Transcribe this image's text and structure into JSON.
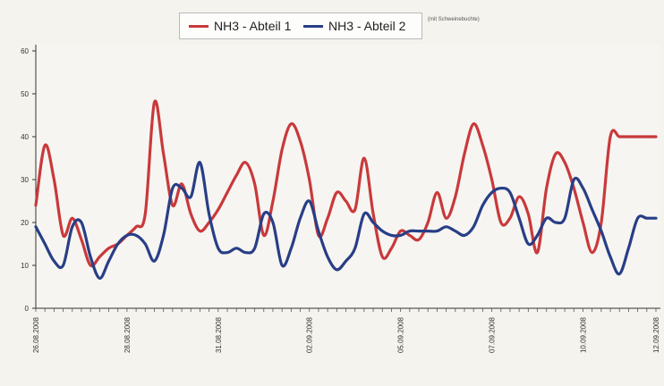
{
  "chart_data": {
    "type": "line",
    "title": "",
    "xlabel": "",
    "ylabel": "",
    "ylim": [
      0,
      60
    ],
    "yticks": [
      0,
      10,
      20,
      30,
      40,
      50,
      60
    ],
    "grid": false,
    "legend_position": "top-center",
    "note": "(mit Schweinebuchte)",
    "x_tick_labels": [
      "26.08.2008",
      "28.08.2008",
      "31.08.2008",
      "02.09.2008",
      "05.09.2008",
      "07.09.2008",
      "10.09.2008",
      "12.09.2008"
    ],
    "x": [
      0,
      1,
      2,
      3,
      4,
      5,
      6,
      7,
      8,
      9,
      10,
      11,
      12,
      13,
      14,
      15,
      16,
      17,
      18,
      19,
      20,
      21,
      22,
      23,
      24,
      25,
      26,
      27,
      28,
      29,
      30,
      31,
      32,
      33,
      34,
      35,
      36,
      37,
      38,
      39,
      40,
      41,
      42,
      43,
      44,
      45,
      46,
      47,
      48,
      49,
      50,
      51,
      52,
      53,
      54,
      55,
      56,
      57,
      58,
      59,
      60,
      61,
      62,
      63,
      64,
      65,
      66,
      67,
      68
    ],
    "x_tick_positions": [
      0,
      10,
      20,
      30,
      40,
      50,
      60,
      68
    ],
    "series": [
      {
        "name": "NH3 - Abteil 1",
        "color": "#c9393b",
        "values": [
          24,
          38,
          30,
          17,
          21,
          16,
          10,
          12,
          14,
          15,
          17,
          19,
          22,
          48,
          36,
          24,
          29,
          22,
          18,
          20,
          23,
          27,
          31,
          34,
          29,
          17,
          25,
          37,
          43,
          39,
          30,
          17,
          21,
          27,
          25,
          23,
          35,
          22,
          12,
          14,
          18,
          17,
          16,
          20,
          27,
          21,
          26,
          36,
          43,
          38,
          30,
          20,
          21,
          26,
          22,
          13,
          28,
          36,
          34,
          28,
          20,
          13,
          20,
          40,
          40,
          40,
          40,
          40,
          40
        ]
      },
      {
        "name": "NH3 - Abteil 2",
        "color": "#283e86",
        "values": [
          19,
          15,
          11,
          10,
          19,
          20,
          12,
          7,
          11,
          15,
          17,
          17,
          15,
          11,
          17,
          28,
          28,
          26,
          34,
          22,
          14,
          13,
          14,
          13,
          14,
          22,
          20,
          10,
          14,
          21,
          25,
          18,
          12,
          9,
          11,
          14,
          22,
          20,
          18,
          17,
          17,
          18,
          18,
          18,
          18,
          19,
          18,
          17,
          19,
          24,
          27,
          28,
          27,
          21,
          15,
          17,
          21,
          20,
          21,
          30,
          28,
          23,
          18,
          12,
          8,
          14,
          21,
          21,
          21
        ]
      }
    ]
  }
}
